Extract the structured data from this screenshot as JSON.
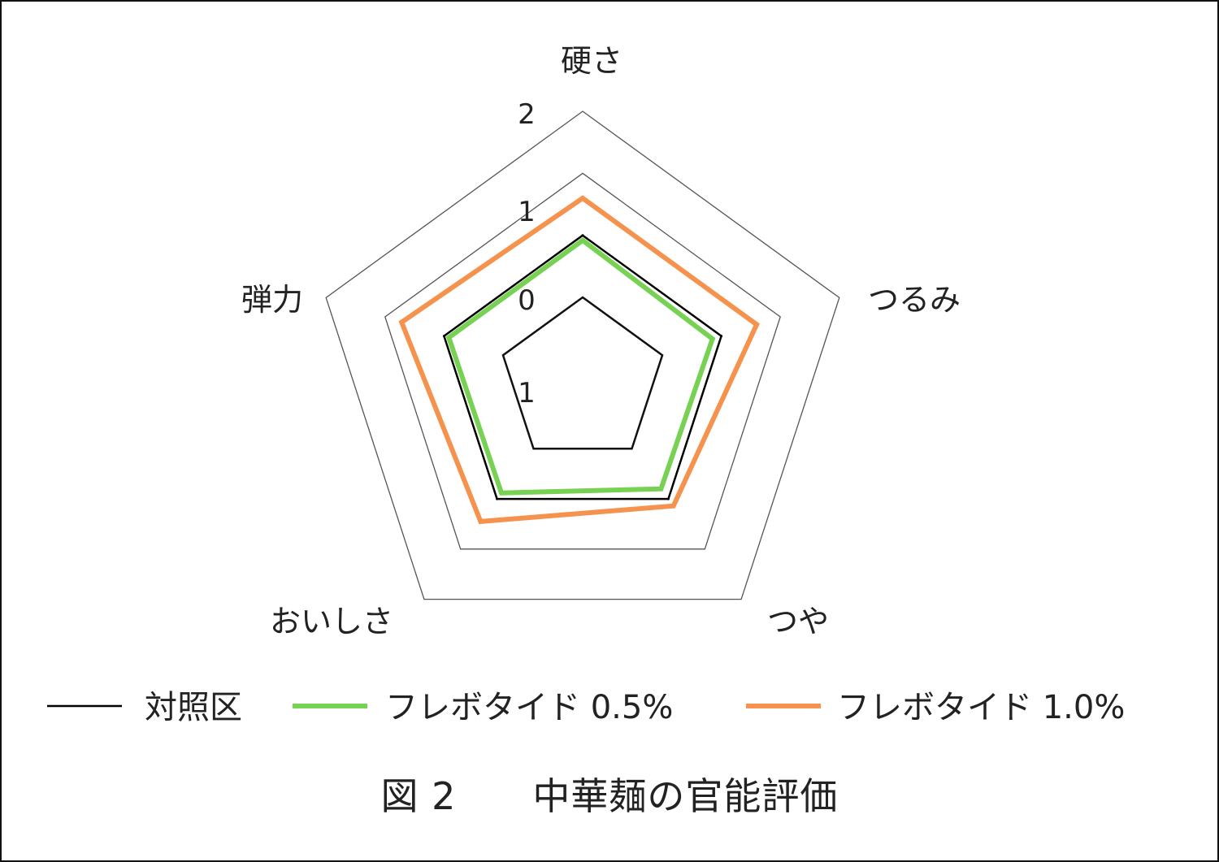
{
  "chart_data": {
    "type": "radar",
    "axes": [
      "硬さ",
      "つるみ",
      "つや",
      "おいしさ",
      "弾力"
    ],
    "ticks": [
      "1",
      "0",
      "1",
      "2"
    ],
    "range": [
      -1,
      2
    ],
    "grid": true,
    "legend_position": "bottom",
    "series": [
      {
        "name": "対照区",
        "values": [
          0.0,
          0.0,
          0.0,
          0.0,
          0.0
        ],
        "color": "#000000"
      },
      {
        "name": "フレボタイド 0.5%",
        "values": [
          -0.08,
          -0.15,
          -0.2,
          -0.12,
          -0.08
        ],
        "color": "#77d153"
      },
      {
        "name": "フレボタイド 1.0%",
        "values": [
          0.6,
          0.6,
          0.14,
          0.45,
          0.72
        ],
        "color": "#f5934e"
      }
    ]
  },
  "caption": "図 2　　中華麺の官能評価"
}
